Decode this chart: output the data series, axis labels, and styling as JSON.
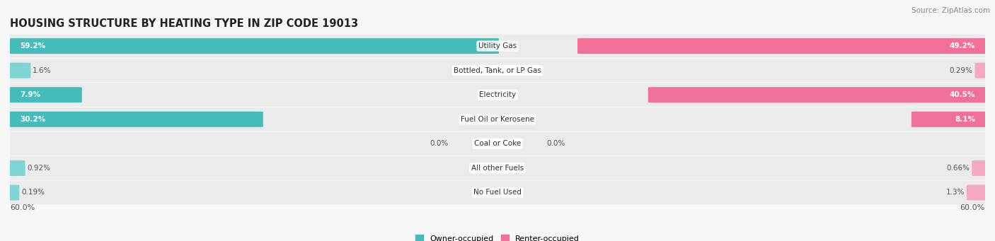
{
  "title": "HOUSING STRUCTURE BY HEATING TYPE IN ZIP CODE 19013",
  "source": "Source: ZipAtlas.com",
  "categories": [
    "Utility Gas",
    "Bottled, Tank, or LP Gas",
    "Electricity",
    "Fuel Oil or Kerosene",
    "Coal or Coke",
    "All other Fuels",
    "No Fuel Used"
  ],
  "owner_values": [
    59.2,
    1.6,
    7.9,
    30.2,
    0.0,
    0.92,
    0.19
  ],
  "renter_values": [
    49.2,
    0.29,
    40.5,
    8.1,
    0.0,
    0.66,
    1.3
  ],
  "owner_color": "#45BBBB",
  "renter_color": "#F07098",
  "owner_color_light": "#80D4D4",
  "renter_color_light": "#F5A8C0",
  "axis_max": 60.0,
  "bg_color": "#f7f7f7",
  "row_bg_color": "#ebebeb",
  "title_fontsize": 10.5,
  "source_fontsize": 7.5,
  "value_fontsize": 7.5,
  "category_fontsize": 7.5,
  "axis_label_fontsize": 8,
  "bar_height": 0.62,
  "legend_fontsize": 8
}
